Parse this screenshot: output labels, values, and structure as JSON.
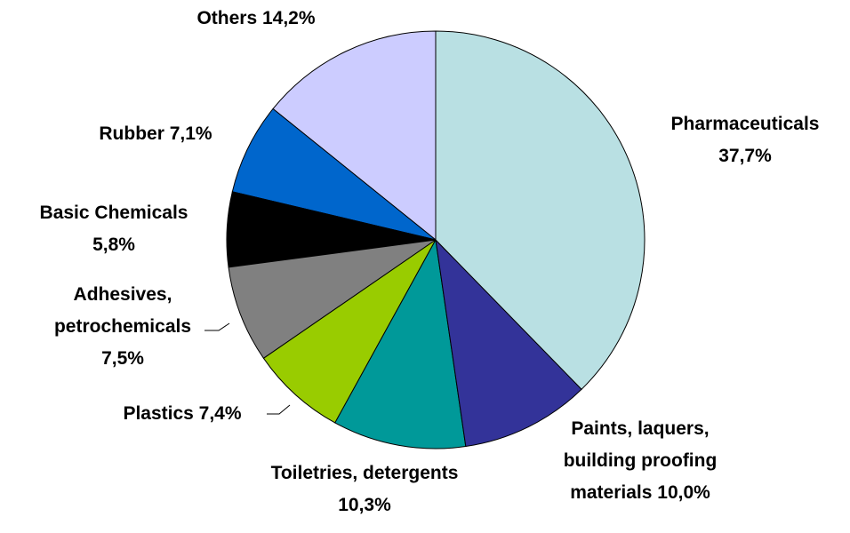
{
  "chart_data": {
    "type": "pie",
    "categories": [
      "Pharmaceuticals",
      "Paints, laquers, building proofing materials",
      "Toiletries, detergents",
      "Plastics",
      "Adhesives, petrochemicals",
      "Basic Chemicals",
      "Rubber",
      "Others"
    ],
    "values": [
      37.7,
      10.0,
      10.3,
      7.4,
      7.5,
      5.8,
      7.1,
      14.2
    ],
    "value_labels": [
      "37,7%",
      "10,0%",
      "10,3%",
      "7,4%",
      "7,5%",
      "5,8%",
      "7,1%",
      "14,2%"
    ],
    "colors": [
      "#b9e0e3",
      "#333399",
      "#009999",
      "#99cc00",
      "#808080",
      "#000000",
      "#0066cc",
      "#ccccff"
    ]
  }
}
